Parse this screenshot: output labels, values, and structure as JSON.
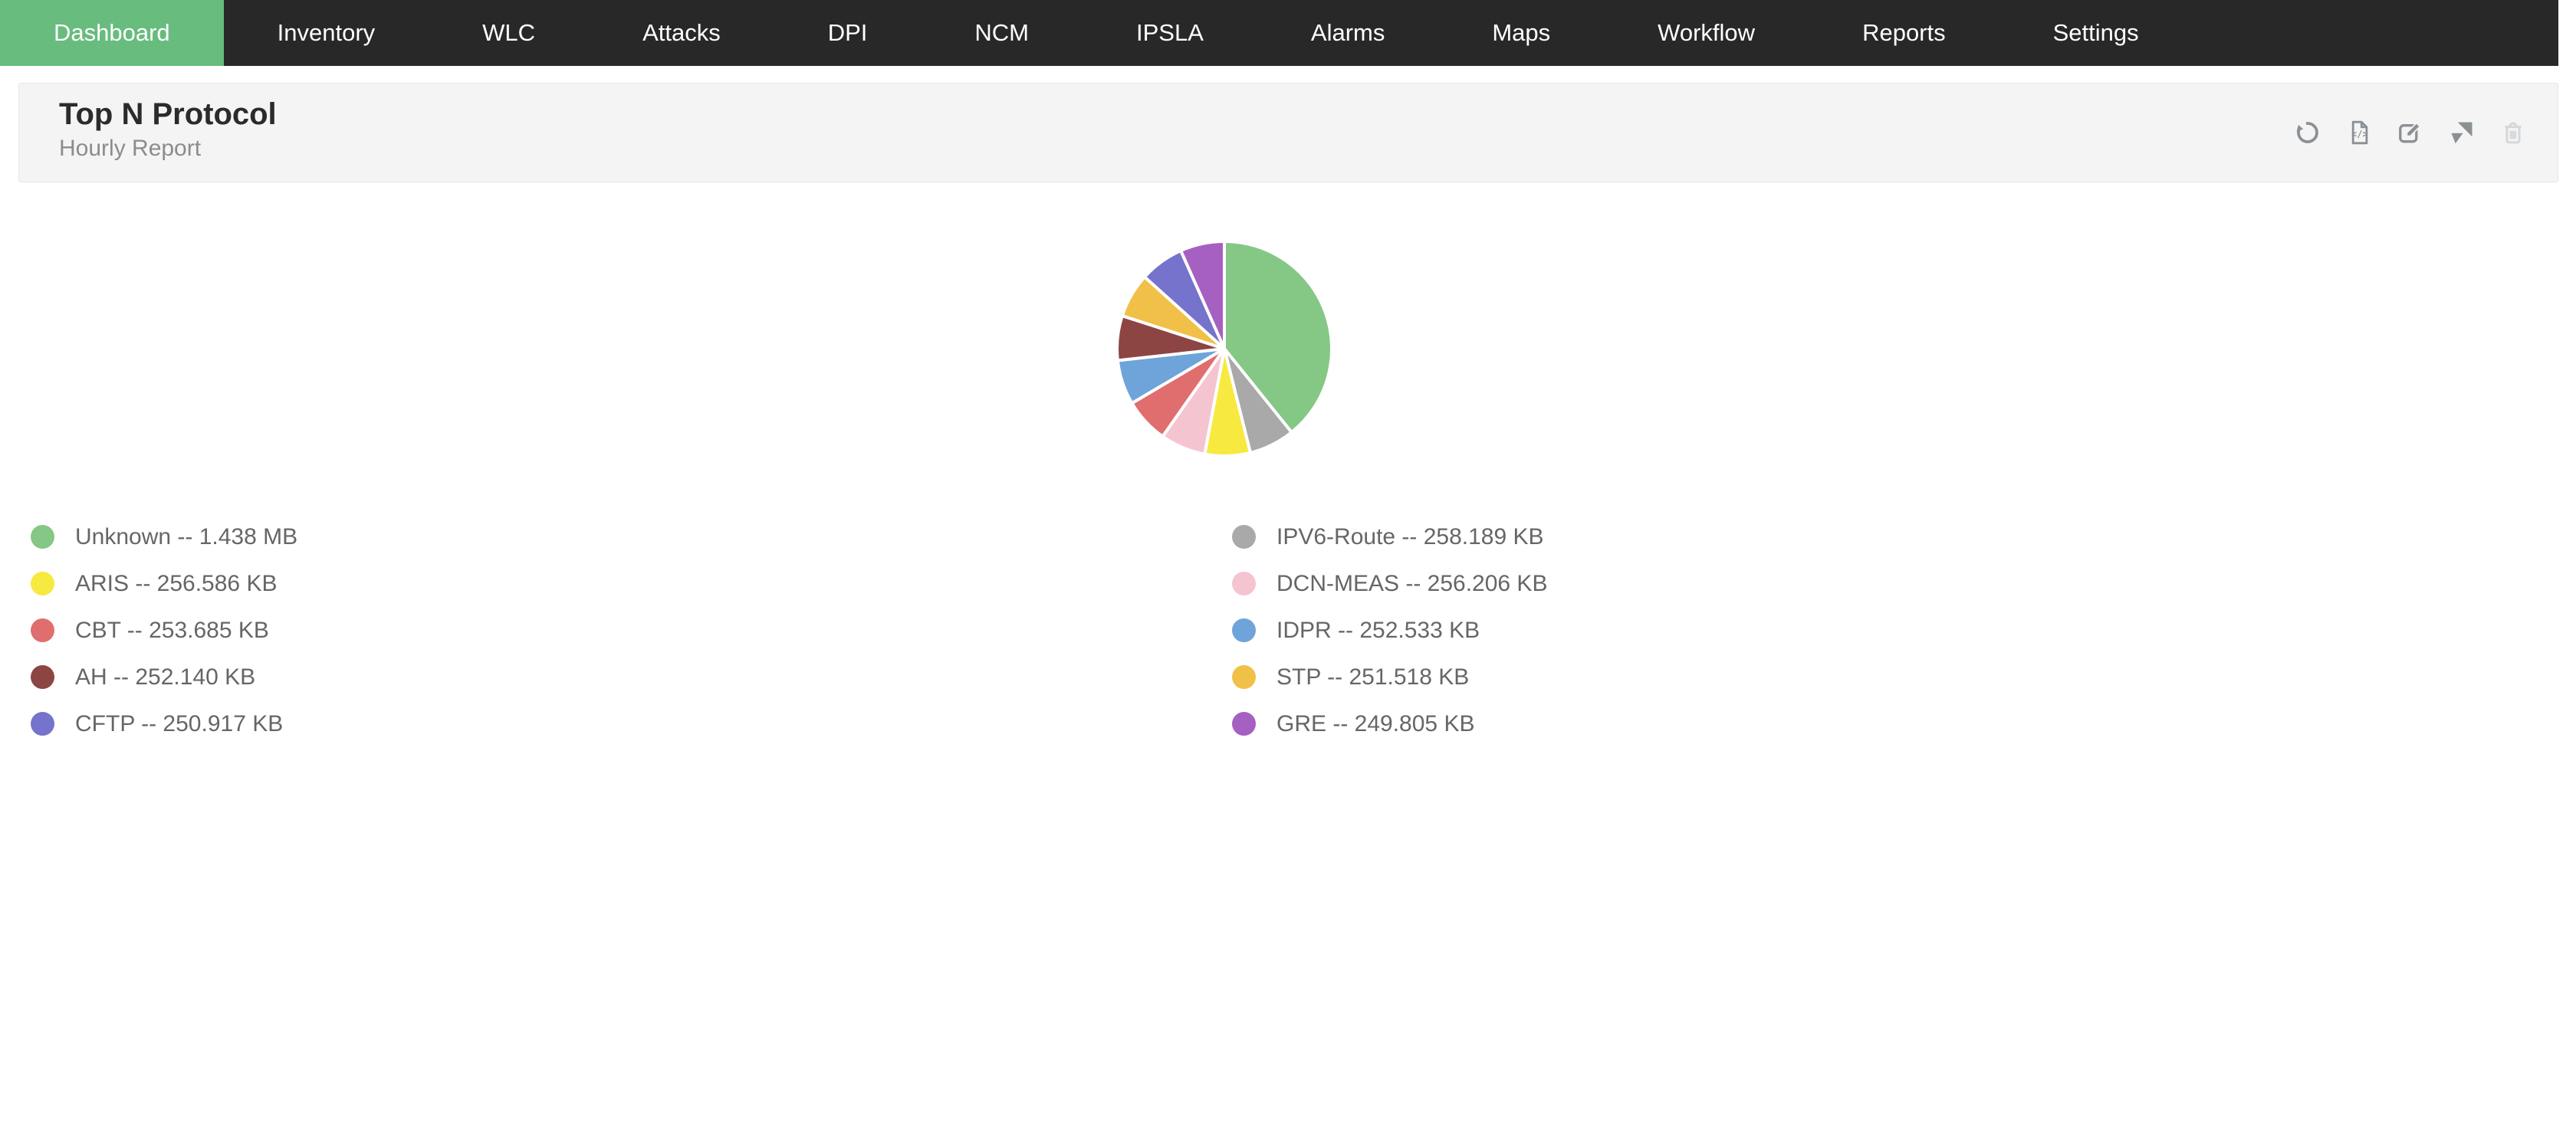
{
  "nav": {
    "items": [
      {
        "label": "Dashboard",
        "active": true
      },
      {
        "label": "Inventory",
        "active": false
      },
      {
        "label": "WLC",
        "active": false
      },
      {
        "label": "Attacks",
        "active": false
      },
      {
        "label": "DPI",
        "active": false
      },
      {
        "label": "NCM",
        "active": false
      },
      {
        "label": "IPSLA",
        "active": false
      },
      {
        "label": "Alarms",
        "active": false
      },
      {
        "label": "Maps",
        "active": false
      },
      {
        "label": "Workflow",
        "active": false
      },
      {
        "label": "Reports",
        "active": false
      },
      {
        "label": "Settings",
        "active": false
      }
    ]
  },
  "panel": {
    "title": "Top N Protocol",
    "subtitle": "Hourly Report",
    "actions": [
      {
        "name": "refresh",
        "icon": "refresh-icon",
        "disabled": false
      },
      {
        "name": "export-report",
        "icon": "code-file-icon",
        "disabled": false
      },
      {
        "name": "edit",
        "icon": "edit-icon",
        "disabled": false
      },
      {
        "name": "move",
        "icon": "move-pointer-icon",
        "disabled": false
      },
      {
        "name": "delete",
        "icon": "trash-icon",
        "disabled": true
      }
    ]
  },
  "colors": {
    "nav_bg": "#282828",
    "nav_active_green": "#68bc7e",
    "panel_bg": "#f4f4f4",
    "icon_gray": "#8b9095",
    "icon_disabled": "#d4d8db",
    "legend_text": "#666666"
  },
  "chart_data": {
    "type": "pie",
    "title": "Top N Protocol",
    "subtitle": "Hourly Report",
    "start_angle_deg": -90,
    "direction": "clockwise",
    "legend_position": "bottom-two-columns",
    "slices": [
      {
        "label": "Unknown",
        "value_kb": 1472.512,
        "value_display": "1.438 MB",
        "legend_text": "Unknown -- 1.438 MB",
        "color": "#85c785"
      },
      {
        "label": "IPV6-Route",
        "value_kb": 258.189,
        "value_display": "258.189 KB",
        "legend_text": "IPV6-Route -- 258.189 KB",
        "color": "#a9a9a9"
      },
      {
        "label": "ARIS",
        "value_kb": 256.586,
        "value_display": "256.586 KB",
        "legend_text": "ARIS -- 256.586 KB",
        "color": "#f7e940"
      },
      {
        "label": "DCN-MEAS",
        "value_kb": 256.206,
        "value_display": "256.206 KB",
        "legend_text": "DCN-MEAS -- 256.206 KB",
        "color": "#f4c5d1"
      },
      {
        "label": "CBT",
        "value_kb": 253.685,
        "value_display": "253.685 KB",
        "legend_text": "CBT -- 253.685 KB",
        "color": "#e06e6e"
      },
      {
        "label": "IDPR",
        "value_kb": 252.533,
        "value_display": "252.533 KB",
        "legend_text": "IDPR -- 252.533 KB",
        "color": "#6ea4d9"
      },
      {
        "label": "AH",
        "value_kb": 252.14,
        "value_display": "252.140 KB",
        "legend_text": "AH -- 252.140 KB",
        "color": "#8d4543"
      },
      {
        "label": "STP",
        "value_kb": 251.518,
        "value_display": "251.518 KB",
        "legend_text": "STP -- 251.518 KB",
        "color": "#f0c048"
      },
      {
        "label": "CFTP",
        "value_kb": 250.917,
        "value_display": "250.917 KB",
        "legend_text": "CFTP -- 250.917 KB",
        "color": "#7673cc"
      },
      {
        "label": "GRE",
        "value_kb": 249.805,
        "value_display": "249.805 KB",
        "legend_text": "GRE -- 249.805 KB",
        "color": "#a660c2"
      }
    ]
  }
}
